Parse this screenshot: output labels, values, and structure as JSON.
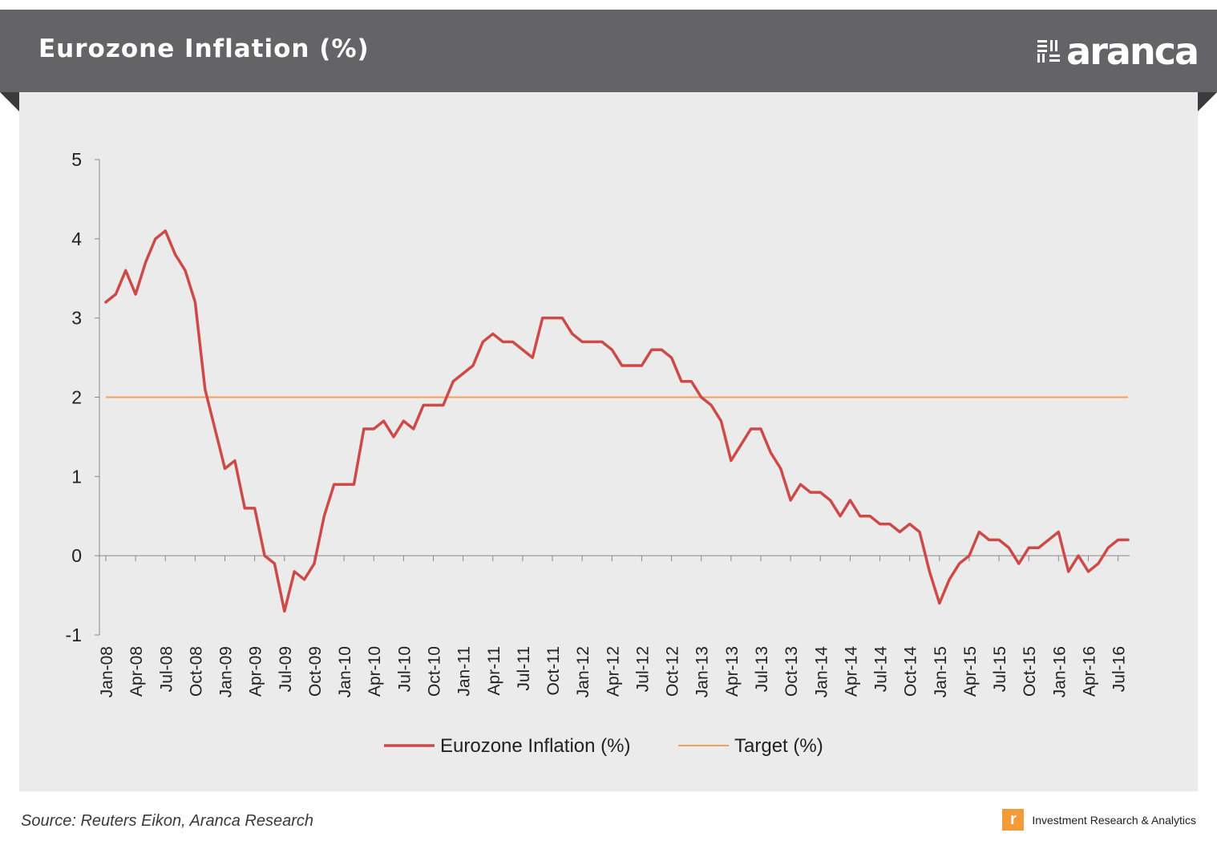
{
  "header": {
    "title": "Eurozone Inflation (%)",
    "logo_text": "aranca"
  },
  "footer": {
    "source": "Source: Reuters Eikon, Aranca Research",
    "tagline": "Investment  Research & Analytics",
    "tag_icon_glyph": "r"
  },
  "icons": {
    "logo_mark": "aranca-grid-mark-icon",
    "tag_icon": "aranca-r-badge-icon"
  },
  "colors": {
    "banner": "#646466",
    "panel": "#ebebeb",
    "inflation_line": "#cc4a47",
    "target_line": "#f4a05a",
    "tag_icon": "#f39a3b"
  },
  "chart_data": {
    "type": "line",
    "title": "Eurozone Inflation (%)",
    "xlabel": "",
    "ylabel": "",
    "ylim": [
      -1,
      5
    ],
    "yticks": [
      5,
      4,
      3,
      2,
      1,
      0,
      -1
    ],
    "grid": false,
    "legend": "bottom",
    "x": [
      "Jan-08",
      "Feb-08",
      "Mar-08",
      "Apr-08",
      "May-08",
      "Jun-08",
      "Jul-08",
      "Aug-08",
      "Sep-08",
      "Oct-08",
      "Nov-08",
      "Dec-08",
      "Jan-09",
      "Feb-09",
      "Mar-09",
      "Apr-09",
      "May-09",
      "Jun-09",
      "Jul-09",
      "Aug-09",
      "Sep-09",
      "Oct-09",
      "Nov-09",
      "Dec-09",
      "Jan-10",
      "Feb-10",
      "Mar-10",
      "Apr-10",
      "May-10",
      "Jun-10",
      "Jul-10",
      "Aug-10",
      "Sep-10",
      "Oct-10",
      "Nov-10",
      "Dec-10",
      "Jan-11",
      "Feb-11",
      "Mar-11",
      "Apr-11",
      "May-11",
      "Jun-11",
      "Jul-11",
      "Aug-11",
      "Sep-11",
      "Oct-11",
      "Nov-11",
      "Dec-11",
      "Jan-12",
      "Feb-12",
      "Mar-12",
      "Apr-12",
      "May-12",
      "Jun-12",
      "Jul-12",
      "Aug-12",
      "Sep-12",
      "Oct-12",
      "Nov-12",
      "Dec-12",
      "Jan-13",
      "Feb-13",
      "Mar-13",
      "Apr-13",
      "May-13",
      "Jun-13",
      "Jul-13",
      "Aug-13",
      "Sep-13",
      "Oct-13",
      "Nov-13",
      "Dec-13",
      "Jan-14",
      "Feb-14",
      "Mar-14",
      "Apr-14",
      "May-14",
      "Jun-14",
      "Jul-14",
      "Aug-14",
      "Sep-14",
      "Oct-14",
      "Nov-14",
      "Dec-14",
      "Jan-15",
      "Feb-15",
      "Mar-15",
      "Apr-15",
      "May-15",
      "Jun-15",
      "Jul-15",
      "Aug-15",
      "Sep-15",
      "Oct-15",
      "Nov-15",
      "Dec-15",
      "Jan-16",
      "Feb-16",
      "Mar-16",
      "Apr-16",
      "May-16",
      "Jun-16",
      "Jul-16",
      "Aug-16"
    ],
    "tick_labels": [
      "Jan-08",
      "Apr-08",
      "Jul-08",
      "Oct-08",
      "Jan-09",
      "Apr-09",
      "Jul-09",
      "Oct-09",
      "Jan-10",
      "Apr-10",
      "Jul-10",
      "Oct-10",
      "Jan-11",
      "Apr-11",
      "Jul-11",
      "Oct-11",
      "Jan-12",
      "Apr-12",
      "Jul-12",
      "Oct-12",
      "Jan-13",
      "Apr-13",
      "Jul-13",
      "Oct-13",
      "Jan-14",
      "Apr-14",
      "Jul-14",
      "Oct-14",
      "Jan-15",
      "Apr-15",
      "Jul-15",
      "Oct-15",
      "Jan-16",
      "Apr-16",
      "Jul-16"
    ],
    "series": [
      {
        "name": "Eurozone Inflation (%)",
        "values": [
          3.2,
          3.3,
          3.6,
          3.3,
          3.7,
          4.0,
          4.1,
          3.8,
          3.6,
          3.2,
          2.1,
          1.6,
          1.1,
          1.2,
          0.6,
          0.6,
          0.0,
          -0.1,
          -0.7,
          -0.2,
          -0.3,
          -0.1,
          0.5,
          0.9,
          0.9,
          0.9,
          1.6,
          1.6,
          1.7,
          1.5,
          1.7,
          1.6,
          1.9,
          1.9,
          1.9,
          2.2,
          2.3,
          2.4,
          2.7,
          2.8,
          2.7,
          2.7,
          2.6,
          2.5,
          3.0,
          3.0,
          3.0,
          2.8,
          2.7,
          2.7,
          2.7,
          2.6,
          2.4,
          2.4,
          2.4,
          2.6,
          2.6,
          2.5,
          2.2,
          2.2,
          2.0,
          1.9,
          1.7,
          1.2,
          1.4,
          1.6,
          1.6,
          1.3,
          1.1,
          0.7,
          0.9,
          0.8,
          0.8,
          0.7,
          0.5,
          0.7,
          0.5,
          0.5,
          0.4,
          0.4,
          0.3,
          0.4,
          0.3,
          -0.2,
          -0.6,
          -0.3,
          -0.1,
          0.0,
          0.3,
          0.2,
          0.2,
          0.1,
          -0.1,
          0.1,
          0.1,
          0.2,
          0.3,
          -0.2,
          0.0,
          -0.2,
          -0.1,
          0.1,
          0.2,
          0.2
        ]
      },
      {
        "name": "Target (%)",
        "value": 2
      }
    ]
  }
}
